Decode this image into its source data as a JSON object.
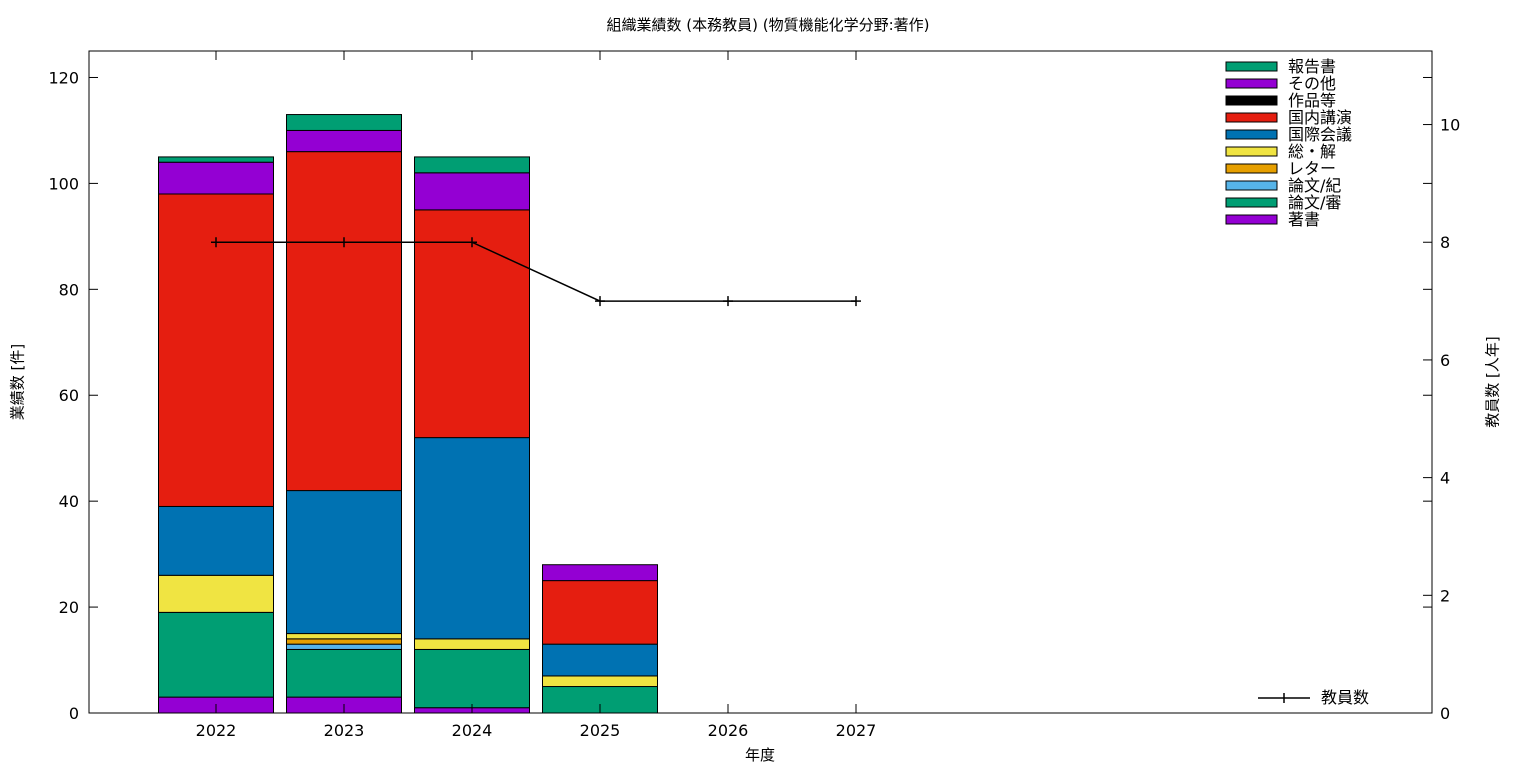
{
  "chart_data": {
    "type": "bar",
    "stacked": true,
    "title": "組織業績数 (本務教員) (物質機能化学分野:著作)",
    "xlabel": "年度",
    "ylabel": "業績数 [件]",
    "y2label": "教員数 [人年]",
    "categories": [
      "2022",
      "2023",
      "2024",
      "2025",
      "2026",
      "2027"
    ],
    "ylim": [
      0,
      125
    ],
    "y2lim": [
      0,
      11.25
    ],
    "yticks": [
      0,
      20,
      40,
      60,
      80,
      100,
      120
    ],
    "y2ticks": [
      0,
      2,
      4,
      6,
      8,
      10
    ],
    "legend_position": "top-right",
    "series": [
      {
        "name": "著書",
        "color": "#9400d3",
        "values": [
          3,
          3,
          1,
          0,
          0,
          0
        ]
      },
      {
        "name": "論文/審",
        "color": "#009e73",
        "values": [
          16,
          9,
          11,
          5,
          0,
          0
        ]
      },
      {
        "name": "論文/紀",
        "color": "#56b4e9",
        "values": [
          0,
          1,
          0,
          0,
          0,
          0
        ]
      },
      {
        "name": "レター",
        "color": "#e69f00",
        "values": [
          0,
          1,
          0,
          0,
          0,
          0
        ]
      },
      {
        "name": "総・解",
        "color": "#f0e442",
        "values": [
          7,
          1,
          2,
          2,
          0,
          0
        ]
      },
      {
        "name": "国際会議",
        "color": "#0072b2",
        "values": [
          13,
          27,
          38,
          6,
          0,
          0
        ]
      },
      {
        "name": "国内講演",
        "color": "#e51e10",
        "values": [
          59,
          64,
          43,
          12,
          0,
          0
        ]
      },
      {
        "name": "作品等",
        "color": "#000000",
        "values": [
          0,
          0,
          0,
          0,
          0,
          0
        ]
      },
      {
        "name": "その他",
        "color": "#9400d3",
        "values": [
          6,
          4,
          7,
          3,
          0,
          0
        ]
      },
      {
        "name": "報告書",
        "color": "#009e73",
        "values": [
          1,
          3,
          3,
          0,
          0,
          0
        ]
      }
    ],
    "line_series": {
      "name": "教員数",
      "axis": "right",
      "color": "#000000",
      "values": [
        8,
        8,
        8,
        7,
        7,
        7
      ]
    }
  }
}
